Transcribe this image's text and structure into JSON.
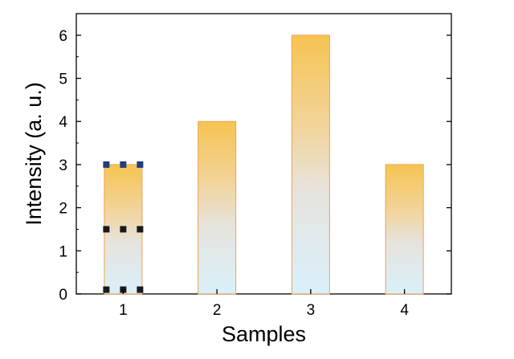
{
  "chart_data": {
    "type": "bar",
    "title": "",
    "xlabel": "Samples",
    "ylabel": "Intensity (a. u.)",
    "categories": [
      "1",
      "2",
      "3",
      "4"
    ],
    "values": [
      3,
      4,
      6,
      3
    ],
    "ylim": [
      0,
      6.5
    ],
    "yticks": [
      0,
      1,
      2,
      3,
      4,
      5,
      6
    ],
    "grid": false,
    "legend": "none",
    "bar_fill_top": "#f6c453",
    "bar_fill_bottom": "#d9f0fb",
    "bar_edge": "#f0a050",
    "markers": [
      {
        "category": "1",
        "y": 3.0,
        "color": "#1f3f7f",
        "style": "square-dots"
      },
      {
        "category": "1",
        "y": 1.5,
        "color": "#1a1a1a",
        "style": "square-dots"
      },
      {
        "category": "1",
        "y": 0.1,
        "color": "#1a1a1a",
        "style": "square-dots"
      }
    ]
  }
}
